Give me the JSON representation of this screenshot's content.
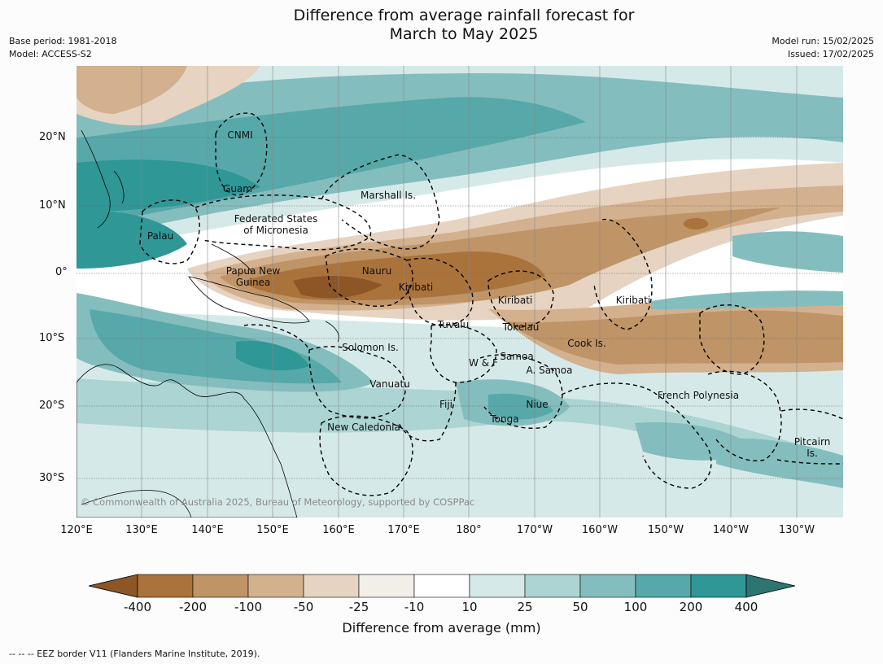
{
  "title_line1": "Difference from average rainfall forecast for",
  "title_line2": "March to May 2025",
  "meta_left": [
    "Base period: 1981-2018",
    "Model: ACCESS-S2"
  ],
  "meta_right": [
    "Model run: 15/02/2025",
    "Issued: 17/02/2025"
  ],
  "lat_ticks": [
    "20°N",
    "10°N",
    "0°",
    "10°S",
    "20°S",
    "30°S"
  ],
  "lon_ticks": [
    "120°E",
    "130°E",
    "140°E",
    "150°E",
    "160°E",
    "170°E",
    "180°",
    "170°W",
    "160°W",
    "150°W",
    "140°W",
    "130°W"
  ],
  "regions": {
    "cnmi": "CNMI",
    "guam": "Guam",
    "marshall": "Marshall Is.",
    "fsm_1": "Federated States",
    "fsm_2": "of Micronesia",
    "palau": "Palau",
    "png_1": "Papua New",
    "png_2": "Guinea",
    "nauru": "Nauru",
    "kiribati_w": "Kiribati",
    "kiribati_c": "Kiribati",
    "kiribati_e": "Kiribati",
    "tuvalu": "Tuvalu",
    "tokelau": "Tokelau",
    "cook": "Cook Is.",
    "solomon": "Solomon Is.",
    "samoa": "Samoa",
    "wf": "W & F",
    "asamoa": "A. Samoa",
    "vanuatu": "Vanuatu",
    "fiji": "Fiji",
    "niue": "Niue",
    "tonga": "Tonga",
    "french_polynesia": "French Polynesia",
    "new_caledonia": "New Caledonia",
    "pitcairn_1": "Pitcairn",
    "pitcairn_2": "Is."
  },
  "copyright": "© Commonwealth of Australia 2025, Bureau of Meteorology, supported by COSPPac",
  "colorbar": {
    "title": "Difference from average (mm)",
    "labels": [
      "-400",
      "-200",
      "-100",
      "-50",
      "-25",
      "-10",
      "10",
      "25",
      "50",
      "100",
      "200",
      "400"
    ],
    "colors": [
      "#8c5626",
      "#ab733c",
      "#bf9466",
      "#d3b08e",
      "#e6d3c1",
      "#f2eee8",
      "#ffffff",
      "#d5eae8",
      "#abd4d3",
      "#84bdbd",
      "#57a8a9",
      "#2f9796",
      "#2c7571"
    ]
  },
  "footer": "--  --  -- EEZ border V11 (Flanders Marine Institute, 2019)."
}
